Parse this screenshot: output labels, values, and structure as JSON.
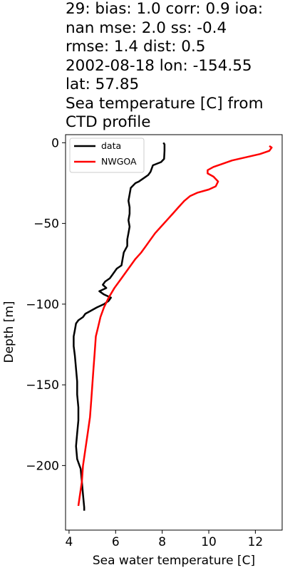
{
  "title_lines": [
    "29: bias: 1.0  corr: 0.9  ioa:",
    "nan  mse: 2.0  ss: -0.4",
    "rmse: 1.4  dist: 0.5",
    "2002-08-18 lon: -154.55",
    "lat: 57.85",
    "Sea temperature [C] from",
    "CTD profile"
  ],
  "chart_data": {
    "type": "line",
    "title": "29: bias: 1.0  corr: 0.9  ioa: nan  mse: 2.0  ss: -0.4  rmse: 1.4  dist: 0.5  2002-08-18 lon: -154.55  lat: 57.85  Sea temperature [C] from CTD profile",
    "xlabel": "Sea water temperature [C]",
    "ylabel": "Depth [m]",
    "xlim": [
      3.85,
      13.15
    ],
    "ylim": [
      -240,
      5
    ],
    "xticks": [
      4,
      6,
      8,
      10,
      12
    ],
    "yticks": [
      0,
      -50,
      -100,
      -150,
      -200
    ],
    "ytick_labels": [
      "0",
      "−50",
      "−100",
      "−150",
      "−200"
    ],
    "legend_position": "upper-left",
    "grid": false,
    "series": [
      {
        "name": "data",
        "color": "#000000",
        "points": [
          [
            8.05,
            0
          ],
          [
            8.1,
            -1
          ],
          [
            8.1,
            -5
          ],
          [
            8.08,
            -10
          ],
          [
            7.95,
            -12
          ],
          [
            7.6,
            -14
          ],
          [
            7.5,
            -18
          ],
          [
            7.4,
            -20
          ],
          [
            7.2,
            -22
          ],
          [
            7.0,
            -24
          ],
          [
            6.85,
            -25
          ],
          [
            6.65,
            -28
          ],
          [
            6.6,
            -32
          ],
          [
            6.55,
            -36
          ],
          [
            6.6,
            -40
          ],
          [
            6.6,
            -44
          ],
          [
            6.55,
            -48
          ],
          [
            6.6,
            -52
          ],
          [
            6.55,
            -56
          ],
          [
            6.5,
            -60
          ],
          [
            6.5,
            -64
          ],
          [
            6.35,
            -68
          ],
          [
            6.3,
            -72
          ],
          [
            6.25,
            -76
          ],
          [
            6.05,
            -78
          ],
          [
            5.95,
            -80
          ],
          [
            5.85,
            -82
          ],
          [
            5.75,
            -84
          ],
          [
            5.55,
            -86
          ],
          [
            5.45,
            -88
          ],
          [
            5.6,
            -90
          ],
          [
            5.3,
            -92
          ],
          [
            5.5,
            -94
          ],
          [
            5.8,
            -96
          ],
          [
            5.7,
            -98
          ],
          [
            5.5,
            -100
          ],
          [
            5.2,
            -102
          ],
          [
            4.95,
            -104
          ],
          [
            4.7,
            -106
          ],
          [
            4.6,
            -108
          ],
          [
            4.4,
            -110
          ],
          [
            4.3,
            -112
          ],
          [
            4.25,
            -116
          ],
          [
            4.2,
            -120
          ],
          [
            4.2,
            -126
          ],
          [
            4.25,
            -132
          ],
          [
            4.3,
            -140
          ],
          [
            4.35,
            -148
          ],
          [
            4.35,
            -156
          ],
          [
            4.4,
            -164
          ],
          [
            4.4,
            -172
          ],
          [
            4.35,
            -180
          ],
          [
            4.3,
            -188
          ],
          [
            4.35,
            -196
          ],
          [
            4.5,
            -202
          ],
          [
            4.55,
            -210
          ],
          [
            4.6,
            -218
          ],
          [
            4.65,
            -226
          ],
          [
            4.65,
            -228
          ]
        ]
      },
      {
        "name": "NWGOA",
        "color": "#ff0000",
        "points": [
          [
            12.6,
            -2
          ],
          [
            12.7,
            -3
          ],
          [
            12.6,
            -5
          ],
          [
            12.2,
            -7
          ],
          [
            11.6,
            -9
          ],
          [
            11.0,
            -11
          ],
          [
            10.6,
            -13
          ],
          [
            10.2,
            -15
          ],
          [
            9.95,
            -17
          ],
          [
            9.95,
            -19
          ],
          [
            10.2,
            -21
          ],
          [
            10.4,
            -24
          ],
          [
            10.3,
            -27
          ],
          [
            10.0,
            -29
          ],
          [
            9.5,
            -31
          ],
          [
            9.2,
            -33
          ],
          [
            8.95,
            -36
          ],
          [
            8.7,
            -40
          ],
          [
            8.45,
            -44
          ],
          [
            8.2,
            -48
          ],
          [
            7.95,
            -52
          ],
          [
            7.7,
            -56
          ],
          [
            7.5,
            -60
          ],
          [
            7.3,
            -64
          ],
          [
            7.1,
            -68
          ],
          [
            6.85,
            -72
          ],
          [
            6.55,
            -78
          ],
          [
            6.25,
            -84
          ],
          [
            5.95,
            -90
          ],
          [
            5.7,
            -96
          ],
          [
            5.5,
            -102
          ],
          [
            5.35,
            -108
          ],
          [
            5.25,
            -114
          ],
          [
            5.15,
            -120
          ],
          [
            5.1,
            -130
          ],
          [
            5.05,
            -140
          ],
          [
            5.0,
            -150
          ],
          [
            4.95,
            -160
          ],
          [
            4.9,
            -170
          ],
          [
            4.8,
            -180
          ],
          [
            4.7,
            -190
          ],
          [
            4.6,
            -200
          ],
          [
            4.55,
            -210
          ],
          [
            4.45,
            -220
          ],
          [
            4.4,
            -225
          ]
        ]
      }
    ]
  }
}
